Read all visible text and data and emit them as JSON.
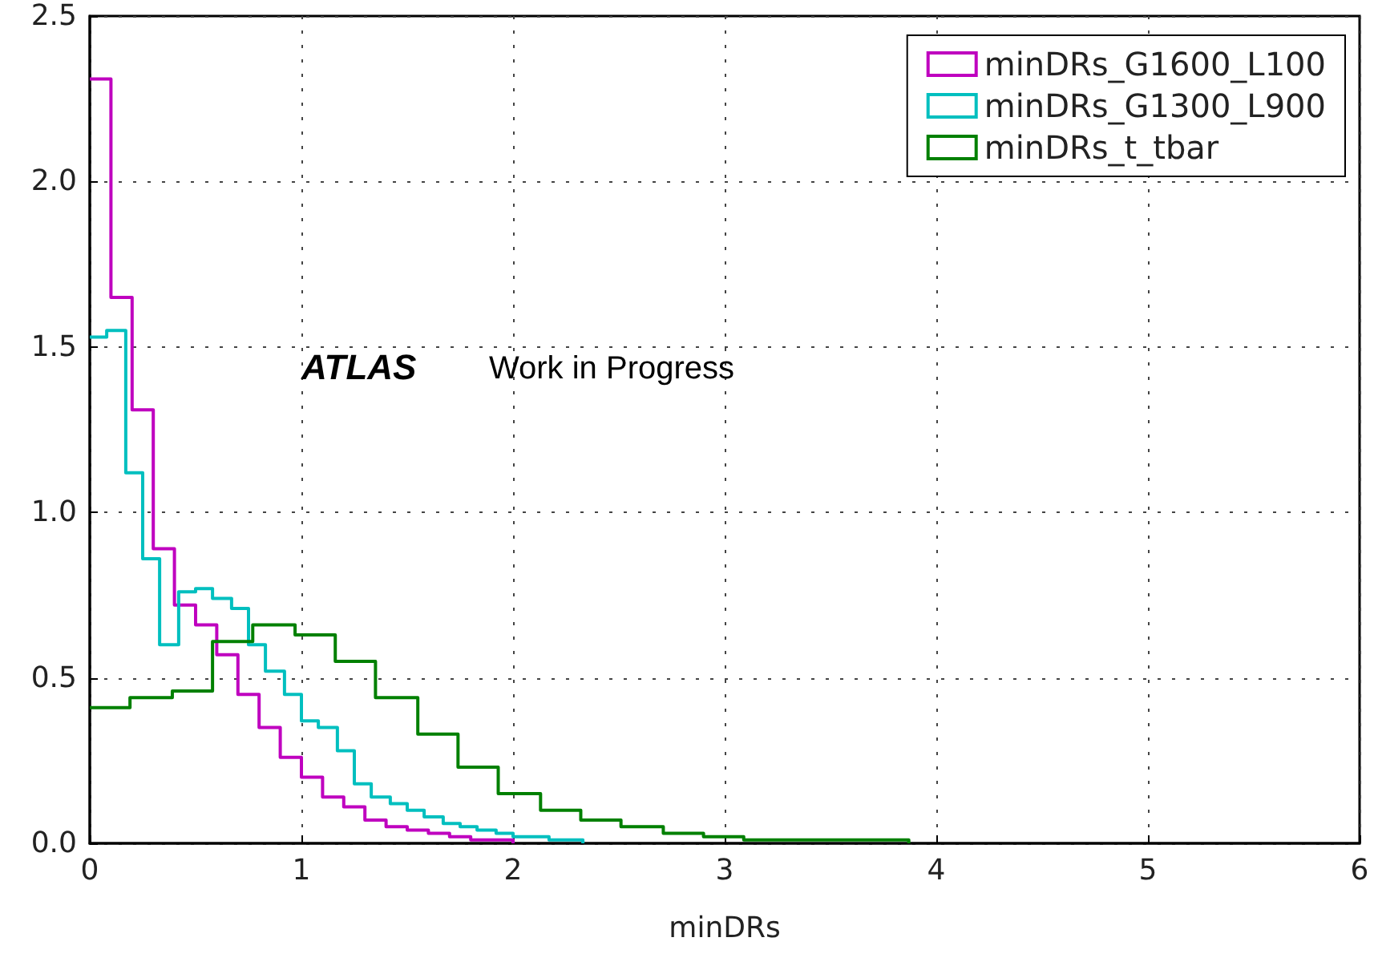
{
  "chart_data": {
    "type": "step",
    "xlabel": "minDRs",
    "annotations": [
      "ATLAS",
      "Work in Progress"
    ],
    "xlim": [
      0,
      6
    ],
    "xticks": [
      0,
      1,
      2,
      3,
      4,
      5,
      6
    ],
    "ylim": [
      0,
      2.5
    ],
    "yticks": [
      {
        "value": 0,
        "label": "0.0"
      },
      {
        "value": 0.5,
        "label": "0.5"
      },
      {
        "value": 1,
        "label": "1.0"
      },
      {
        "value": 1.5,
        "label": "1.5"
      },
      {
        "value": 2,
        "label": "2.0"
      },
      {
        "value": 2.5,
        "label": "2.5"
      }
    ],
    "grid": true,
    "legend": "top right",
    "series": [
      {
        "name": "minDRs_G1600_L100",
        "color": "#bf00bf",
        "x": [
          0,
          0.1,
          0.2,
          0.3,
          0.4,
          0.5,
          0.6,
          0.7,
          0.8,
          0.9,
          1.0,
          1.1,
          1.2,
          1.3,
          1.4,
          1.5,
          1.6,
          1.7,
          1.8,
          1.9,
          2.0
        ],
        "values": [
          2.31,
          1.65,
          1.31,
          0.89,
          0.72,
          0.66,
          0.57,
          0.45,
          0.35,
          0.26,
          0.2,
          0.14,
          0.11,
          0.07,
          0.05,
          0.04,
          0.03,
          0.02,
          0.01,
          0.01,
          0
        ]
      },
      {
        "name": "minDRs_G1300_L900",
        "color": "#00bfbf",
        "x": [
          0,
          0.08,
          0.17,
          0.25,
          0.33,
          0.42,
          0.5,
          0.58,
          0.67,
          0.75,
          0.83,
          0.92,
          1.0,
          1.08,
          1.17,
          1.25,
          1.33,
          1.42,
          1.5,
          1.58,
          1.67,
          1.75,
          1.83,
          1.92,
          2.0,
          2.08,
          2.17,
          2.25,
          2.33
        ],
        "values": [
          1.53,
          1.55,
          1.12,
          0.86,
          0.6,
          0.76,
          0.77,
          0.74,
          0.71,
          0.6,
          0.52,
          0.45,
          0.37,
          0.35,
          0.28,
          0.18,
          0.14,
          0.12,
          0.1,
          0.08,
          0.06,
          0.05,
          0.04,
          0.03,
          0.02,
          0.02,
          0.01,
          0.01,
          0
        ]
      },
      {
        "name": "minDRs_t_tbar",
        "color": "#008000",
        "x": [
          0,
          0.19,
          0.39,
          0.58,
          0.77,
          0.97,
          1.16,
          1.35,
          1.55,
          1.74,
          1.93,
          2.13,
          2.32,
          2.51,
          2.71,
          2.9,
          3.09,
          3.29,
          3.48,
          3.67,
          3.87
        ],
        "values": [
          0.41,
          0.44,
          0.46,
          0.61,
          0.66,
          0.63,
          0.55,
          0.44,
          0.33,
          0.23,
          0.15,
          0.1,
          0.07,
          0.05,
          0.03,
          0.02,
          0.01,
          0.01,
          0.01,
          0.01,
          0
        ]
      }
    ]
  }
}
